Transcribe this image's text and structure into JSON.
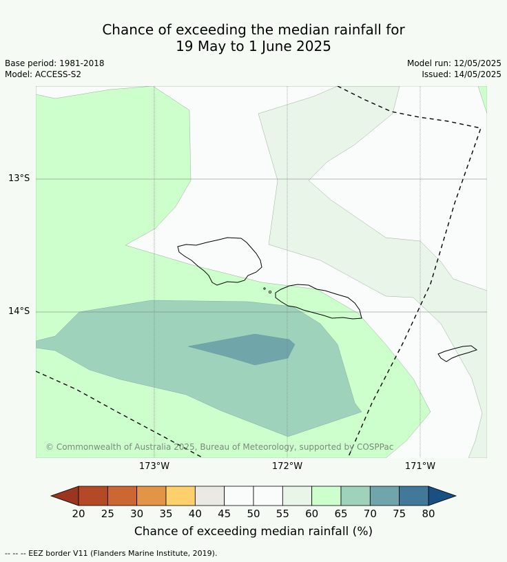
{
  "title_line1": "Chance of exceeding the median rainfall for",
  "title_line2": "19 May to 1 June 2025",
  "base_period": "Base period: 1981-2018",
  "model": "Model: ACCESS-S2",
  "model_run": "Model run: 12/05/2025",
  "issued": "Issued: 14/05/2025",
  "lat_labels": [
    "13°S",
    "14°S"
  ],
  "lon_labels": [
    "173°W",
    "172°W",
    "171°W"
  ],
  "copyright": "© Commonwealth of Australia 2025, Bureau of Meteorology, supported by COSPPac",
  "colorbar": {
    "ticks": [
      "20",
      "25",
      "30",
      "35",
      "40",
      "45",
      "50",
      "55",
      "60",
      "65",
      "70",
      "75",
      "80"
    ],
    "colors": [
      "#b34a25",
      "#cc6633",
      "#e39547",
      "#fdd06b",
      "#ebe9e4",
      "#f9fcfa",
      "#f9fcfa",
      "#eaf5ea",
      "#ccffcc",
      "#9ed2bb",
      "#70a5aa",
      "#427899"
    ],
    "low_color": "#9a3520",
    "high_color": "#1a4f82",
    "label": "Chance of exceeding median rainfall (%)"
  },
  "footnote": "--  --  -- EEZ border V11 (Flanders Marine Institute, 2019)."
}
